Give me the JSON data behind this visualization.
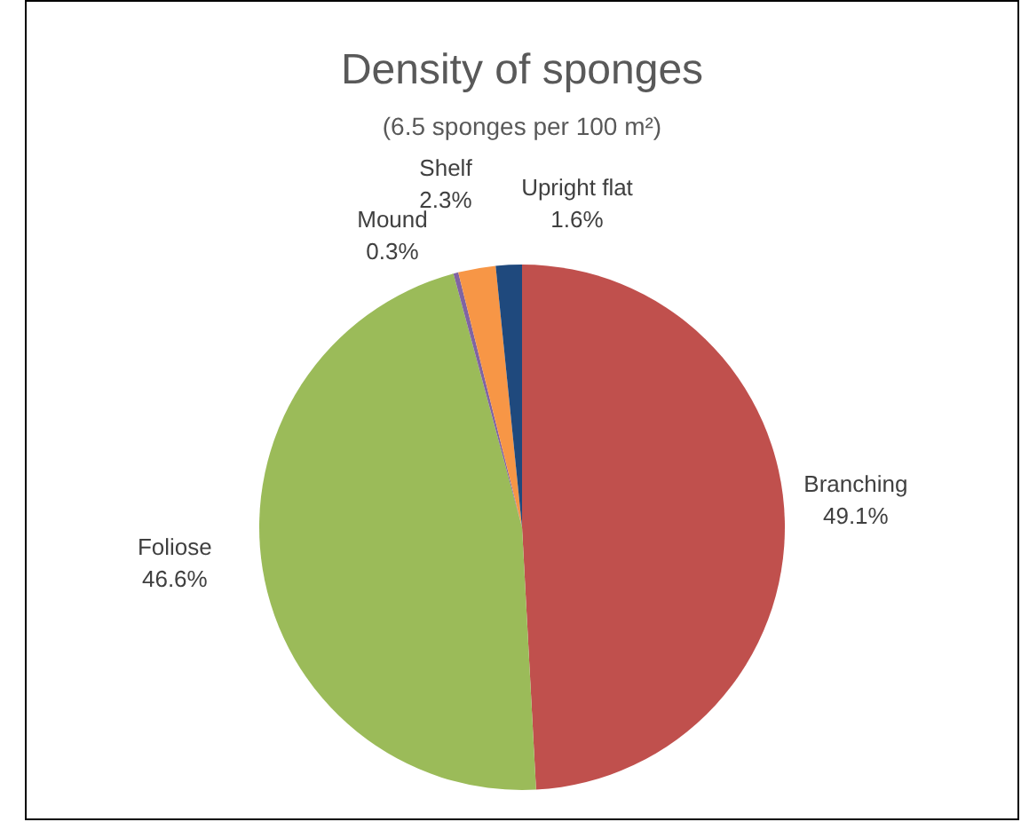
{
  "chart_data": {
    "type": "pie",
    "title": "Density of sponges",
    "subtitle": "(6.5 sponges per 100 m²)",
    "categories": [
      "Branching",
      "Foliose",
      "Mound",
      "Shelf",
      "Upright flat"
    ],
    "values": [
      49.1,
      46.6,
      0.3,
      2.3,
      1.6
    ],
    "value_labels": [
      "49.1%",
      "46.6%",
      "0.3%",
      "2.3%",
      "1.6%"
    ],
    "colors": [
      "#c0504d",
      "#9bbb59",
      "#8064a2",
      "#f79646",
      "#1f497d"
    ],
    "legend": false
  }
}
